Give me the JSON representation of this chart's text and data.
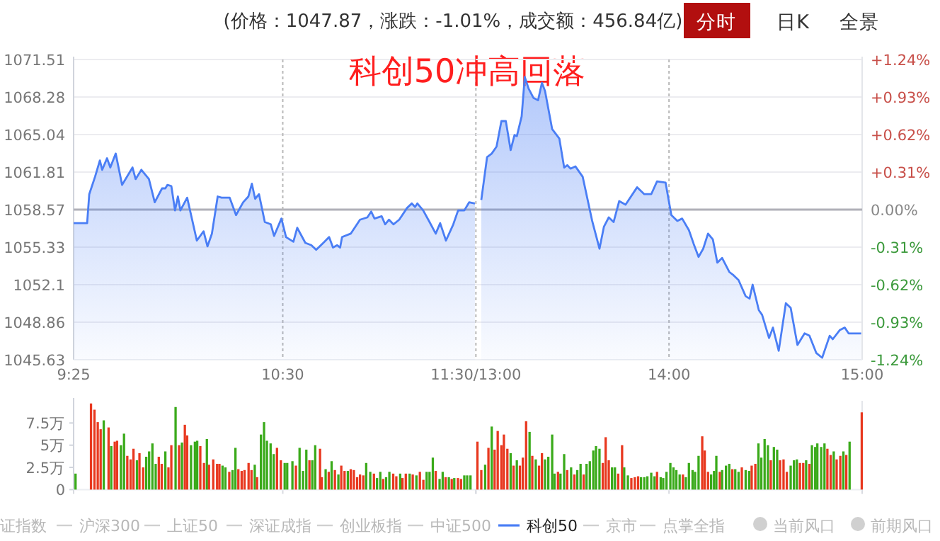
{
  "chart_data": [
    {
      "type": "area",
      "title": "科创50冲高回落",
      "legend": "bottom",
      "grid": "y",
      "annotations": [
        "(价格：1047.87，涨跌：-1.01%，成交额：456.84亿)",
        "分时",
        "日K",
        "全景",
        "证指数",
        "沪深300",
        "上证50",
        "深证成指",
        "创业板指",
        "中证500",
        "京市",
        "点掌全指",
        "当前风口",
        "前期风口"
      ],
      "xlim": [
        9.417,
        11.5
      ],
      "xticks": [
        {
          "value": 9.417,
          "label": "9:25"
        },
        {
          "value": 10.5,
          "label": "10:30"
        },
        {
          "value": 11.5,
          "label": "11:30/13:00"
        }
      ],
      "ylim": [
        1045.63,
        1071.51
      ],
      "yticks": [
        1045.63,
        1048.86,
        1052.1,
        1055.33,
        1058.57,
        1061.81,
        1065.04,
        1068.28,
        1071.51
      ],
      "ref_lines": [
        {
          "axis": "y",
          "value": 1058.57,
          "color": "#b0b0b8"
        },
        {
          "axis": "x",
          "value": 10.5,
          "color": "#b8b8b8",
          "line_style": "dotted"
        },
        {
          "axis": "x",
          "value": 11.5,
          "color": "#b8b8b8",
          "line_style": "dotted"
        }
      ],
      "series": [
        {
          "name": "科创50",
          "color": "#4a7ef5",
          "x": [
            9.417,
            9.487,
            9.498,
            9.528,
            9.553,
            9.565,
            9.59,
            9.607,
            9.635,
            9.668,
            9.722,
            9.738,
            9.768,
            9.807,
            9.837,
            9.875,
            9.892,
            9.903,
            9.923,
            9.942,
            9.957,
            9.97,
            10.005,
            10.055,
            10.09,
            10.11,
            10.133,
            10.163,
            10.183,
            10.225,
            10.258,
            10.295,
            10.322,
            10.34,
            10.357,
            10.377,
            10.407,
            10.438,
            10.455,
            10.493,
            10.517,
            10.555,
            10.575,
            10.617,
            10.648,
            10.673,
            10.71,
            10.74,
            10.76,
            10.782,
            10.797,
            10.807,
            10.852,
            10.9,
            10.938,
            10.958,
            10.975,
            11.012,
            11.03,
            11.05,
            11.073,
            11.103,
            11.143,
            11.168,
            11.185,
            11.197,
            11.227,
            11.26,
            11.292,
            11.315,
            11.345,
            11.383,
            11.408,
            11.44,
            11.465,
            11.495
          ],
          "values": [
            1057.4,
            1057.4,
            1059.9,
            1061.4,
            1062.8,
            1062.0,
            1063.0,
            1062.2,
            1063.4,
            1060.7,
            1062.2,
            1061.2,
            1062.0,
            1061.2,
            1059.2,
            1060.4,
            1060.4,
            1060.7,
            1060.6,
            1058.5,
            1059.7,
            1058.5,
            1059.6,
            1055.9,
            1056.7,
            1055.4,
            1056.5,
            1059.7,
            1059.6,
            1059.6,
            1058.1,
            1059.2,
            1059.7,
            1060.8,
            1059.5,
            1059.9,
            1057.5,
            1057.3,
            1056.3,
            1057.8,
            1056.2,
            1055.8,
            1057.0,
            1055.7,
            1055.5,
            1055.1,
            1055.7,
            1056.2,
            1055.3,
            1055.5,
            1055.3,
            1056.2,
            1056.5,
            1057.7,
            1057.9,
            1058.4,
            1057.8,
            1058.0,
            1057.3,
            1057.7,
            1057.3,
            1057.7,
            1058.7,
            1059.1,
            1058.8,
            1059.1,
            1058.5,
            1057.5,
            1056.5,
            1057.4,
            1055.9,
            1057.3,
            1058.5,
            1058.5,
            1059.2,
            1059.1
          ]
        }
      ]
    },
    {
      "type": "area",
      "grid": "y",
      "tick_labels": "x",
      "xlim": [
        13,
        15
      ],
      "xticks": [
        {
          "value": 14,
          "label": "14:00"
        },
        {
          "value": 15,
          "label": "15:00"
        }
      ],
      "ylim": [
        1045.63,
        1071.51
      ],
      "yticks": [
        1045.63,
        1048.86,
        1052.1,
        1055.33,
        1058.57,
        1061.81,
        1065.04,
        1068.28,
        1071.51
      ],
      "y2lim": [
        -1.24,
        1.24
      ],
      "y2ticks": [
        {
          "value": -1.24,
          "label": "-1.24%"
        },
        {
          "value": -0.93,
          "label": "-0.93%"
        },
        {
          "value": -0.62,
          "label": "-0.62%"
        },
        {
          "value": -0.31,
          "label": "-0.31%"
        },
        {
          "value": 0,
          "label": "0.00%"
        },
        {
          "value": 0.31,
          "label": "+0.31%"
        },
        {
          "value": 0.62,
          "label": "+0.62%"
        },
        {
          "value": 0.93,
          "label": "+0.93%"
        },
        {
          "value": 1.24,
          "label": "+1.24%"
        }
      ],
      "ref_lines": [
        {
          "axis": "y",
          "value": 1058.57,
          "color": "#b0b0b8"
        },
        {
          "axis": "x",
          "value": 14,
          "color": "#b8b8b8",
          "line_style": "dotted"
        }
      ],
      "series": [
        {
          "color": "#4a7ef5",
          "x": [
            13.028,
            13.058,
            13.082,
            13.107,
            13.132,
            13.155,
            13.18,
            13.2,
            13.212,
            13.237,
            13.253,
            13.273,
            13.298,
            13.322,
            13.342,
            13.358,
            13.395,
            13.432,
            13.457,
            13.473,
            13.49,
            13.515,
            13.553,
            13.602,
            13.64,
            13.663,
            13.688,
            13.713,
            13.742,
            13.775,
            13.835,
            13.872,
            13.908,
            13.938,
            13.982,
            14.012,
            14.043,
            14.068,
            14.103,
            14.128,
            14.153,
            14.177,
            14.202,
            14.227,
            14.25,
            14.275,
            14.312,
            14.335,
            14.36,
            14.397,
            14.417,
            14.433,
            14.465,
            14.482,
            14.518,
            14.538,
            14.568,
            14.605,
            14.63,
            14.665,
            14.702,
            14.727,
            14.763,
            14.793,
            14.832,
            14.848,
            14.885,
            14.91,
            14.93,
            14.995
          ],
          "values": [
            1059.4,
            1063.1,
            1063.4,
            1064.0,
            1066.2,
            1066.2,
            1063.7,
            1065.0,
            1064.9,
            1066.6,
            1070.0,
            1069.0,
            1068.2,
            1068.0,
            1069.5,
            1068.8,
            1065.5,
            1064.7,
            1062.2,
            1062.4,
            1062.1,
            1062.3,
            1061.4,
            1057.6,
            1055.2,
            1057.1,
            1057.9,
            1057.5,
            1059.3,
            1059.0,
            1060.5,
            1059.9,
            1059.9,
            1061.0,
            1060.9,
            1058.1,
            1057.6,
            1057.8,
            1056.8,
            1055.6,
            1054.5,
            1055.2,
            1056.5,
            1056.0,
            1054.0,
            1054.4,
            1053.2,
            1052.9,
            1052.5,
            1051.1,
            1050.9,
            1052.1,
            1049.9,
            1049.5,
            1047.5,
            1048.4,
            1046.4,
            1050.5,
            1050.1,
            1046.9,
            1047.9,
            1047.7,
            1046.2,
            1045.8,
            1047.7,
            1047.4,
            1048.2,
            1048.4,
            1047.9,
            1047.9
          ]
        }
      ]
    },
    {
      "type": "bar",
      "tick_labels": "y",
      "xlim": [
        9.417,
        11.5
      ],
      "xticks": [
        {
          "value": 9.417,
          "label": null
        },
        {
          "value": 10.5,
          "label": null
        },
        {
          "value": 11.5,
          "label": null
        }
      ],
      "ylim": [
        0,
        10
      ],
      "yticks": [
        0,
        {
          "value": 2.5,
          "label": "2.5万"
        },
        {
          "value": 5,
          "label": "5万"
        },
        {
          "value": 7.5,
          "label": "7.5万"
        }
      ],
      "x": [
        9.427,
        9.507,
        9.525,
        9.542,
        9.557,
        9.573,
        9.598,
        9.612,
        9.63,
        9.642,
        9.662,
        9.678,
        9.695,
        9.712,
        9.727,
        9.745,
        9.758,
        9.777,
        9.793,
        9.808,
        9.825,
        9.842,
        9.858,
        9.873,
        9.892,
        9.908,
        9.923,
        9.945,
        9.963,
        9.978,
        9.993,
        10.005,
        10.025,
        10.045,
        10.057,
        10.073,
        10.092,
        10.107,
        10.118,
        10.14,
        10.16,
        10.172,
        10.188,
        10.203,
        10.223,
        10.24,
        10.255,
        10.27,
        10.287,
        10.302,
        10.323,
        10.338,
        10.355,
        10.367,
        10.387,
        10.403,
        10.418,
        10.437,
        10.453,
        10.47,
        10.49,
        10.51,
        10.523,
        10.55,
        10.568,
        10.587,
        10.605,
        10.622,
        10.638,
        10.653,
        10.668,
        10.693,
        10.702,
        10.722,
        10.738,
        10.753,
        10.77,
        10.788,
        10.803,
        10.82,
        10.837,
        10.852,
        10.868,
        10.885,
        10.9,
        10.917,
        10.932,
        10.953,
        10.972,
        10.988,
        11.005,
        11.02,
        11.035,
        11.052,
        11.072,
        11.088,
        11.108,
        11.12,
        11.137,
        11.157,
        11.173,
        11.192,
        11.21,
        11.228,
        11.245,
        11.26,
        11.277,
        11.292,
        11.312,
        11.328,
        11.343,
        11.36,
        11.375,
        11.388,
        11.407,
        11.423,
        11.44,
        11.455,
        11.472
      ],
      "values": [
        1.8,
        9.7,
        9.0,
        7.6,
        6.8,
        7.8,
        7.0,
        4.9,
        5.4,
        5.5,
        5.0,
        6.3,
        3.8,
        3.4,
        4.6,
        3.3,
        4.1,
        2.5,
        3.7,
        4.3,
        5.2,
        2.9,
        3.7,
        2.9,
        4.3,
        2.5,
        5.0,
        9.3,
        5.0,
        5.3,
        7.3,
        6.1,
        5.0,
        5.4,
        5.5,
        4.9,
        3.0,
        5.7,
        2.8,
        3.4,
        2.9,
        2.9,
        2.7,
        2.5,
        2.0,
        2.2,
        4.7,
        2.3,
        2.1,
        2.2,
        3.0,
        2.2,
        2.8,
        1.4,
        6.2,
        7.6,
        5.5,
        5.2,
        4.0,
        4.7,
        3.3,
        3.0,
        3.0,
        3.2,
        2.7,
        4.7,
        2.1,
        4.5,
        3.3,
        3.3,
        5.0,
        4.6,
        1.4,
        2.3,
        2.0,
        3.2,
        2.2,
        1.7,
        2.7,
        2.1,
        2.1,
        2.3,
        2.2,
        1.4,
        1.7,
        1.6,
        3.0,
        2.0,
        1.8,
        1.3,
        2.0,
        1.2,
        1.4,
        2.0,
        1.8,
        1.5,
        1.8,
        1.3,
        1.8,
        1.8,
        1.7,
        1.6,
        2.0,
        1.1,
        2.0,
        2.0,
        3.6,
        2.1,
        1.2,
        2.0,
        1.4,
        1.4,
        1.2,
        1.3,
        1.3,
        1.2,
        1.6,
        1.6,
        1.6
      ],
      "colors": [
        "#3aaa1a",
        "#e8381f",
        "#e8381f",
        "#e8381f",
        "#e8381f",
        "#3aaa1a",
        "#e8381f",
        "#3aaa1a",
        "#e8381f",
        "#e8381f",
        "#3aaa1a",
        "#3aaa1a",
        "#e8381f",
        "#e8381f",
        "#e8381f",
        "#3aaa1a",
        "#e8381f",
        "#e8381f",
        "#3aaa1a",
        "#3aaa1a",
        "#3aaa1a",
        "#3aaa1a",
        "#e8381f",
        "#e8381f",
        "#3aaa1a",
        "#e8381f",
        "#e8381f",
        "#3aaa1a",
        "#e8381f",
        "#3aaa1a",
        "#e8381f",
        "#e8381f",
        "#3aaa1a",
        "#3aaa1a",
        "#3aaa1a",
        "#e8381f",
        "#e8381f",
        "#3aaa1a",
        "#e8381f",
        "#e8381f",
        "#e8381f",
        "#e8381f",
        "#3aaa1a",
        "#3aaa1a",
        "#e8381f",
        "#3aaa1a",
        "#3aaa1a",
        "#e8381f",
        "#e8381f",
        "#e8381f",
        "#e8381f",
        "#e8381f",
        "#3aaa1a",
        "#e8381f",
        "#3aaa1a",
        "#3aaa1a",
        "#3aaa1a",
        "#3aaa1a",
        "#3aaa1a",
        "#e8381f",
        "#e8381f",
        "#3aaa1a",
        "#3aaa1a",
        "#3aaa1a",
        "#e8381f",
        "#3aaa1a",
        "#3aaa1a",
        "#3aaa1a",
        "#e8381f",
        "#3aaa1a",
        "#3aaa1a",
        "#e8381f",
        "#e8381f",
        "#3aaa1a",
        "#e8381f",
        "#3aaa1a",
        "#e8381f",
        "#3aaa1a",
        "#e8381f",
        "#e8381f",
        "#3aaa1a",
        "#e8381f",
        "#e8381f",
        "#e8381f",
        "#e8381f",
        "#e8381f",
        "#3aaa1a",
        "#3aaa1a",
        "#e8381f",
        "#3aaa1a",
        "#3aaa1a",
        "#e8381f",
        "#3aaa1a",
        "#3aaa1a",
        "#e8381f",
        "#e8381f",
        "#3aaa1a",
        "#e8381f",
        "#e8381f",
        "#3aaa1a",
        "#e8381f",
        "#3aaa1a",
        "#e8381f",
        "#e8381f",
        "#3aaa1a",
        "#3aaa1a",
        "#3aaa1a",
        "#e8381f",
        "#3aaa1a",
        "#3aaa1a",
        "#e8381f",
        "#3aaa1a",
        "#e8381f",
        "#3aaa1a",
        "#e8381f",
        "#e8381f",
        "#3aaa1a",
        "#3aaa1a",
        "#3aaa1a"
      ]
    },
    {
      "type": "bar",
      "tick_labels": false,
      "xlim": [
        13,
        15
      ],
      "xticks": [
        {
          "value": 13,
          "label": null
        },
        {
          "value": 14,
          "label": null
        },
        {
          "value": 15,
          "label": null
        }
      ],
      "ylim": [
        0,
        10
      ],
      "x": [
        13.008,
        13.028,
        13.048,
        13.065,
        13.082,
        13.097,
        13.113,
        13.132,
        13.145,
        13.163,
        13.18,
        13.195,
        13.212,
        13.228,
        13.243,
        13.26,
        13.278,
        13.292,
        13.31,
        13.327,
        13.342,
        13.358,
        13.375,
        13.395,
        13.407,
        13.425,
        13.438,
        13.457,
        13.473,
        13.493,
        13.51,
        13.525,
        13.542,
        13.558,
        13.573,
        13.59,
        13.608,
        13.622,
        13.64,
        13.657,
        13.672,
        13.688,
        13.705,
        13.72,
        13.737,
        13.757,
        13.768,
        13.787,
        13.805,
        13.823,
        13.84,
        13.855,
        13.872,
        13.888,
        13.908,
        13.925,
        13.938,
        13.957,
        13.97,
        13.987,
        14.007,
        14.023,
        14.038,
        14.055,
        14.072,
        14.087,
        14.103,
        14.122,
        14.135,
        14.153,
        14.172,
        14.185,
        14.202,
        14.218,
        14.233,
        14.245,
        14.263,
        14.275,
        14.295,
        14.312,
        14.328,
        14.343,
        14.36,
        14.377,
        14.397,
        14.415,
        14.428,
        14.447,
        14.463,
        14.478,
        14.495,
        14.512,
        14.527,
        14.543,
        14.56,
        14.575,
        14.593,
        14.61,
        14.63,
        14.647,
        14.662,
        14.678,
        14.695,
        14.71,
        14.727,
        14.74,
        14.757,
        14.768,
        14.788,
        14.805,
        14.82,
        14.837,
        14.853,
        14.868,
        14.887,
        14.903,
        14.918,
        14.935,
        14.998
      ],
      "values": [
        5.4,
        2.2,
        2.8,
        4.7,
        7.1,
        4.5,
        6.6,
        5.0,
        6.2,
        4.6,
        4.1,
        2.7,
        3.3,
        2.7,
        3.6,
        7.7,
        6.5,
        3.8,
        3.4,
        2.7,
        4.1,
        3.4,
        3.7,
        6.2,
        1.8,
        2.0,
        1.8,
        4.0,
        2.2,
        2.5,
        1.7,
        2.2,
        2.9,
        1.7,
        2.9,
        3.2,
        4.4,
        4.9,
        4.6,
        3.0,
        5.9,
        3.3,
        2.5,
        2.5,
        1.8,
        5.0,
        2.5,
        1.6,
        1.3,
        1.4,
        1.5,
        1.4,
        1.4,
        1.5,
        1.9,
        1.5,
        2.0,
        1.4,
        1.3,
        2.0,
        3.0,
        2.5,
        2.2,
        1.7,
        1.7,
        1.4,
        3.0,
        2.2,
        2.0,
        3.8,
        6.0,
        4.4,
        2.0,
        1.7,
        2.1,
        3.8,
        2.0,
        2.2,
        2.7,
        2.9,
        2.3,
        2.3,
        2.0,
        2.5,
        2.2,
        2.1,
        2.7,
        2.9,
        5.2,
        3.6,
        5.7,
        5.0,
        3.3,
        4.8,
        4.5,
        3.3,
        3.4,
        2.0,
        2.7,
        3.3,
        3.4,
        3.0,
        3.0,
        3.3,
        2.9,
        5.0,
        4.8,
        5.2,
        4.8,
        5.2,
        4.6,
        3.9,
        4.3,
        3.4,
        3.8,
        4.3,
        3.9,
        5.4,
        8.7
      ],
      "colors": [
        "#e8381f",
        "#e8381f",
        "#3aaa1a",
        "#e8381f",
        "#3aaa1a",
        "#e8381f",
        "#e8381f",
        "#e8381f",
        "#e8381f",
        "#e8381f",
        "#3aaa1a",
        "#e8381f",
        "#3aaa1a",
        "#e8381f",
        "#e8381f",
        "#e8381f",
        "#3aaa1a",
        "#e8381f",
        "#3aaa1a",
        "#e8381f",
        "#e8381f",
        "#3aaa1a",
        "#3aaa1a",
        "#3aaa1a",
        "#3aaa1a",
        "#e8381f",
        "#3aaa1a",
        "#3aaa1a",
        "#e8381f",
        "#3aaa1a",
        "#e8381f",
        "#3aaa1a",
        "#3aaa1a",
        "#e8381f",
        "#3aaa1a",
        "#3aaa1a",
        "#3aaa1a",
        "#3aaa1a",
        "#3aaa1a",
        "#e8381f",
        "#e8381f",
        "#e8381f",
        "#3aaa1a",
        "#3aaa1a",
        "#e8381f",
        "#e8381f",
        "#3aaa1a",
        "#3aaa1a",
        "#e8381f",
        "#e8381f",
        "#e8381f",
        "#3aaa1a",
        "#3aaa1a",
        "#3aaa1a",
        "#3aaa1a",
        "#3aaa1a",
        "#e8381f",
        "#3aaa1a",
        "#3aaa1a",
        "#3aaa1a",
        "#3aaa1a",
        "#3aaa1a",
        "#3aaa1a",
        "#3aaa1a",
        "#e8381f",
        "#3aaa1a",
        "#3aaa1a",
        "#3aaa1a",
        "#3aaa1a",
        "#3aaa1a",
        "#e8381f",
        "#e8381f",
        "#e8381f",
        "#3aaa1a",
        "#3aaa1a",
        "#3aaa1a",
        "#e8381f",
        "#3aaa1a",
        "#3aaa1a",
        "#3aaa1a",
        "#e8381f",
        "#3aaa1a",
        "#3aaa1a",
        "#e8381f",
        "#3aaa1a",
        "#3aaa1a",
        "#e8381f",
        "#e8381f",
        "#3aaa1a",
        "#3aaa1a",
        "#3aaa1a",
        "#3aaa1a",
        "#e8381f",
        "#3aaa1a",
        "#3aaa1a",
        "#e8381f",
        "#e8381f",
        "#e8381f",
        "#3aaa1a",
        "#3aaa1a",
        "#3aaa1a",
        "#e8381f",
        "#e8381f",
        "#3aaa1a",
        "#e8381f",
        "#3aaa1a",
        "#3aaa1a",
        "#3aaa1a",
        "#3aaa1a",
        "#3aaa1a",
        "#e8381f",
        "#e8381f",
        "#3aaa1a",
        "#e8381f",
        "#e8381f",
        "#3aaa1a",
        "#e8381f",
        "#3aaa1a",
        "#e8381f"
      ]
    }
  ]
}
